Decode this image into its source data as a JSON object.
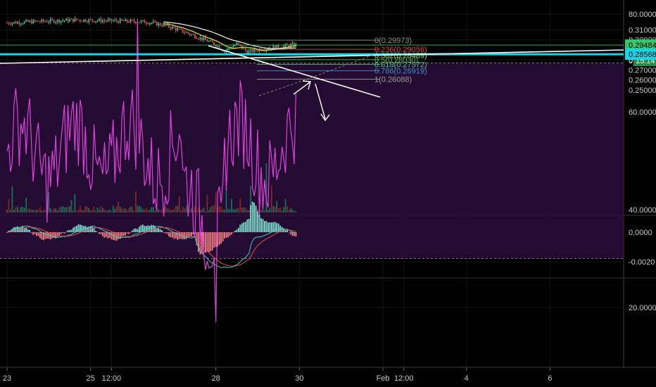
{
  "chart_data": {
    "type": "candlestick",
    "xaxis": {
      "ticks": [
        {
          "label": "23",
          "t": 0
        },
        {
          "label": "25",
          "t": 48
        },
        {
          "label": "12:00",
          "t": 60
        },
        {
          "label": "28",
          "t": 120
        },
        {
          "label": "30",
          "t": 168
        },
        {
          "label": "Feb",
          "t": 216
        },
        {
          "label": "12:00",
          "t": 228
        },
        {
          "label": "4",
          "t": 264
        },
        {
          "label": "6",
          "t": 312
        }
      ]
    },
    "price_axis": {
      "range": [
        0.245,
        0.315
      ],
      "ticks": [
        "0.31000",
        "0.30000",
        "0.28000",
        "0.27000",
        "0.26000",
        "0.25000"
      ],
      "tick_values": [
        0.31,
        0.3,
        0.28,
        0.27,
        0.26,
        0.25
      ],
      "last_price_label": "0.29484",
      "last_price": 0.29484,
      "countdown_label": "15:14",
      "countdown_prefix": "0",
      "support_label": "0.28568",
      "support": 0.28568
    },
    "fibonacci": [
      {
        "label": "0(0.29973)",
        "value": 0.29973,
        "color": "#8a8a8a"
      },
      {
        "label": "0.236(0.29056)",
        "value": 0.29056,
        "color": "#e84040"
      },
      {
        "label": "0.382(0.28489)",
        "value": 0.28489,
        "color": "#a8d84a"
      },
      {
        "label": "0.5(0.28030)",
        "value": 0.2803,
        "color": "#3fbf5a"
      },
      {
        "label": "0.618(0.27572)",
        "value": 0.27572,
        "color": "#4fcf7a"
      },
      {
        "label": "0.786(0.26919)",
        "value": 0.26919,
        "color": "#3f8fcf"
      },
      {
        "label": "1(0.26088)",
        "value": 0.26088,
        "color": "#9a9a9a"
      }
    ],
    "macd_axis": {
      "range": [
        -0.003,
        0.001
      ],
      "ticks": [
        "0.0000",
        "-0.0020"
      ],
      "tick_values": [
        0.0,
        -0.002
      ]
    },
    "rsi_axis": {
      "range": [
        15,
        82
      ],
      "ticks": [
        "80.0000",
        "60.0000",
        "40.0000",
        "20.0000"
      ],
      "tick_values": [
        80,
        60,
        40,
        20
      ],
      "upper_band": 70,
      "lower_band": 30
    },
    "colors": {
      "up": "#2ec4a0",
      "down": "#e05050",
      "ma_fast": "#d8d040",
      "ma_slow": "#e8e8e8",
      "trendline": "#ffffff",
      "support_line": "#19d4e6",
      "rsi_line": "#e040e0",
      "rsi_band": "#2a0d3a",
      "macd_line": "#3fd0c0",
      "signal_line": "#e05050",
      "last_price_bg": "#39c56a",
      "countdown_bg": "#2a8a4a",
      "support_bg": "#19d4e6"
    }
  }
}
